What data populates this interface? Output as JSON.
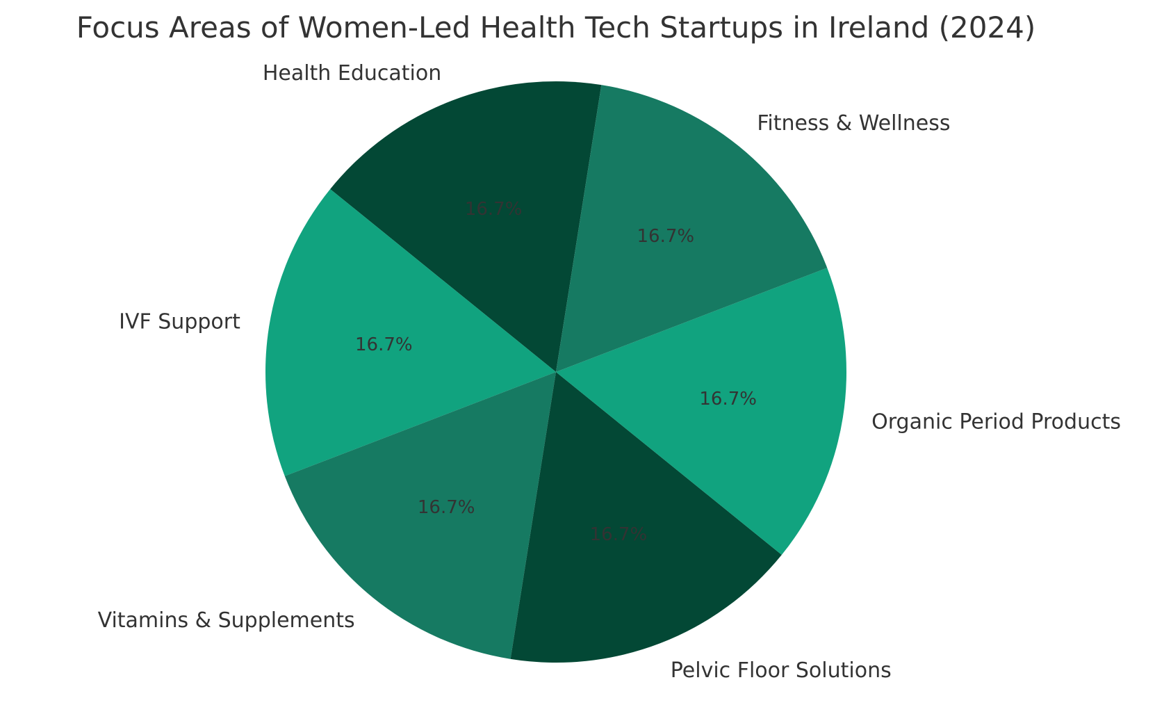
{
  "chart_data": {
    "type": "pie",
    "title": "Focus Areas of Women-Led Health Tech Startups in Ireland (2024)",
    "categories": [
      "Health Education",
      "IVF Support",
      "Vitamins & Supplements",
      "Pelvic Floor Solutions",
      "Organic Period Products",
      "Fitness & Wellness"
    ],
    "values": [
      16.7,
      16.7,
      16.7,
      16.7,
      16.7,
      16.7
    ],
    "percent_labels": [
      "16.7%",
      "16.7%",
      "16.7%",
      "16.7%",
      "16.7%",
      "16.7%"
    ],
    "colors": [
      "#034835",
      "#11a37f",
      "#167a62",
      "#034835",
      "#11a37f",
      "#167a62"
    ],
    "start_angle_deg": 81,
    "direction": "counterclockwise"
  }
}
